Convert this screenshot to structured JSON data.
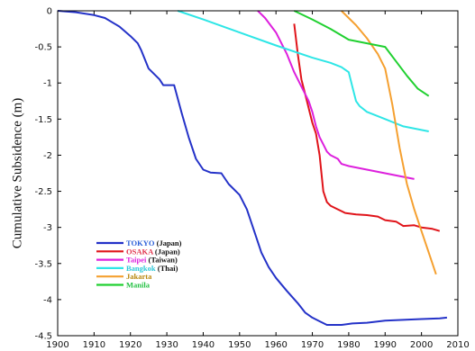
{
  "chart_data": {
    "type": "line",
    "title": "",
    "xlabel": "",
    "ylabel": "Cumulative Subsidence (m)",
    "xlim": [
      1900,
      2010
    ],
    "ylim": [
      -4.5,
      0
    ],
    "xticks": [
      1900,
      1910,
      1920,
      1930,
      1940,
      1950,
      1960,
      1970,
      1980,
      1990,
      2000,
      2010
    ],
    "yticks": [
      0,
      -0.5,
      -1,
      -1.5,
      -2,
      -2.5,
      -3,
      -3.5,
      -4,
      -4.5
    ],
    "grid": false,
    "legend_position": "bottom-left",
    "series": [
      {
        "name": "TOKYO",
        "suffix": " (Japan)",
        "color": "#2432c8",
        "label_color": "#2a5fd8",
        "points": [
          [
            1900,
            0
          ],
          [
            1905,
            -0.02
          ],
          [
            1910,
            -0.06
          ],
          [
            1913,
            -0.1
          ],
          [
            1917,
            -0.22
          ],
          [
            1920,
            -0.35
          ],
          [
            1922,
            -0.45
          ],
          [
            1923,
            -0.55
          ],
          [
            1925,
            -0.8
          ],
          [
            1928,
            -0.95
          ],
          [
            1929,
            -1.03
          ],
          [
            1932,
            -1.03
          ],
          [
            1934,
            -1.4
          ],
          [
            1936,
            -1.75
          ],
          [
            1938,
            -2.05
          ],
          [
            1940,
            -2.2
          ],
          [
            1942,
            -2.24
          ],
          [
            1945,
            -2.25
          ],
          [
            1947,
            -2.4
          ],
          [
            1950,
            -2.55
          ],
          [
            1952,
            -2.75
          ],
          [
            1954,
            -3.05
          ],
          [
            1956,
            -3.35
          ],
          [
            1958,
            -3.55
          ],
          [
            1960,
            -3.7
          ],
          [
            1963,
            -3.88
          ],
          [
            1966,
            -4.05
          ],
          [
            1968,
            -4.18
          ],
          [
            1970,
            -4.25
          ],
          [
            1972,
            -4.3
          ],
          [
            1974,
            -4.35
          ],
          [
            1978,
            -4.35
          ],
          [
            1981,
            -4.33
          ],
          [
            1985,
            -4.32
          ],
          [
            1990,
            -4.29
          ],
          [
            1995,
            -4.28
          ],
          [
            2000,
            -4.27
          ],
          [
            2005,
            -4.26
          ],
          [
            2007,
            -4.25
          ]
        ]
      },
      {
        "name": "OSAKA",
        "suffix": " (Japan)",
        "color": "#e0141a",
        "label_color": "#e0304a",
        "points": [
          [
            1965,
            -0.18
          ],
          [
            1966,
            -0.6
          ],
          [
            1967,
            -0.95
          ],
          [
            1968,
            -1.15
          ],
          [
            1969,
            -1.35
          ],
          [
            1970,
            -1.55
          ],
          [
            1971,
            -1.7
          ],
          [
            1972,
            -2.0
          ],
          [
            1973,
            -2.5
          ],
          [
            1974,
            -2.65
          ],
          [
            1975,
            -2.7
          ],
          [
            1977,
            -2.75
          ],
          [
            1979,
            -2.8
          ],
          [
            1982,
            -2.82
          ],
          [
            1985,
            -2.83
          ],
          [
            1988,
            -2.85
          ],
          [
            1990,
            -2.9
          ],
          [
            1993,
            -2.92
          ],
          [
            1995,
            -2.98
          ],
          [
            1998,
            -2.97
          ],
          [
            2000,
            -3.0
          ],
          [
            2003,
            -3.02
          ],
          [
            2005,
            -3.05
          ]
        ]
      },
      {
        "name": "Taipei",
        "suffix": " (Taiwan)",
        "color": "#dd20dd",
        "label_color": "#dd20dd",
        "points": [
          [
            1955,
            0
          ],
          [
            1957,
            -0.1
          ],
          [
            1960,
            -0.3
          ],
          [
            1963,
            -0.6
          ],
          [
            1965,
            -0.85
          ],
          [
            1967,
            -1.05
          ],
          [
            1969,
            -1.25
          ],
          [
            1970,
            -1.4
          ],
          [
            1971,
            -1.6
          ],
          [
            1972,
            -1.75
          ],
          [
            1973,
            -1.85
          ],
          [
            1974,
            -1.95
          ],
          [
            1975,
            -2.0
          ],
          [
            1977,
            -2.05
          ],
          [
            1978,
            -2.12
          ],
          [
            1980,
            -2.15
          ],
          [
            1985,
            -2.2
          ],
          [
            1990,
            -2.25
          ],
          [
            1995,
            -2.3
          ],
          [
            1998,
            -2.33
          ]
        ]
      },
      {
        "name": "Bangkok",
        "suffix": " (Thai)",
        "color": "#2ee6e6",
        "label_color": "#2ec8d8",
        "points": [
          [
            1933,
            0
          ],
          [
            1940,
            -0.12
          ],
          [
            1950,
            -0.3
          ],
          [
            1960,
            -0.48
          ],
          [
            1970,
            -0.65
          ],
          [
            1975,
            -0.72
          ],
          [
            1978,
            -0.78
          ],
          [
            1980,
            -0.85
          ],
          [
            1981,
            -1.05
          ],
          [
            1982,
            -1.25
          ],
          [
            1983,
            -1.32
          ],
          [
            1985,
            -1.4
          ],
          [
            1990,
            -1.5
          ],
          [
            1995,
            -1.6
          ],
          [
            2000,
            -1.65
          ],
          [
            2002,
            -1.67
          ]
        ]
      },
      {
        "name": "Jakarta",
        "suffix": "",
        "color": "#f5a030",
        "label_color": "#b8860b",
        "points": [
          [
            1978,
            0
          ],
          [
            1982,
            -0.2
          ],
          [
            1985,
            -0.38
          ],
          [
            1988,
            -0.6
          ],
          [
            1990,
            -0.8
          ],
          [
            1992,
            -1.3
          ],
          [
            1994,
            -1.9
          ],
          [
            1996,
            -2.4
          ],
          [
            1998,
            -2.75
          ],
          [
            2000,
            -3.05
          ],
          [
            2002,
            -3.35
          ],
          [
            2004,
            -3.65
          ]
        ]
      },
      {
        "name": "Manila",
        "suffix": "",
        "color": "#20d030",
        "label_color": "#20c040",
        "points": [
          [
            1965,
            0
          ],
          [
            1970,
            -0.12
          ],
          [
            1975,
            -0.25
          ],
          [
            1980,
            -0.4
          ],
          [
            1985,
            -0.45
          ],
          [
            1990,
            -0.5
          ],
          [
            1993,
            -0.7
          ],
          [
            1996,
            -0.9
          ],
          [
            1999,
            -1.08
          ],
          [
            2002,
            -1.18
          ]
        ]
      }
    ]
  }
}
